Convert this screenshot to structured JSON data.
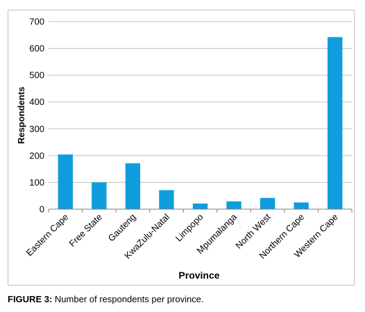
{
  "caption": {
    "label": "FIGURE 3:",
    "text": " Number of respondents per province."
  },
  "colors": {
    "bar": "#0f9ddd",
    "grid": "#bfbfbf",
    "axis": "#7f7f7f",
    "text": "#000000"
  },
  "chart_data": {
    "type": "bar",
    "title": "",
    "xlabel": "Province",
    "ylabel": "Respondents",
    "categories": [
      "Eastern Cape",
      "Free State",
      "Gauteng",
      "KwaZulu-Natal",
      "Limpopo",
      "Mpumalanga",
      "North West",
      "Northern Cape",
      "Western Cape"
    ],
    "values": [
      204,
      100,
      171,
      71,
      21,
      29,
      42,
      25,
      642
    ],
    "ylim": [
      0,
      700
    ],
    "yticks": [
      0,
      100,
      200,
      300,
      400,
      500,
      600,
      700
    ],
    "grid": true,
    "legend": "none"
  }
}
